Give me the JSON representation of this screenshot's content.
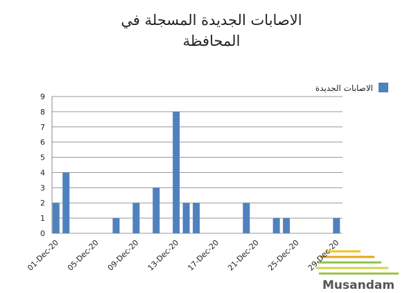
{
  "chart_data": {
    "type": "bar",
    "title": "الاصابات الجديدة المسجلة في المحافظة",
    "x": [
      "01-Dec-20",
      "02-Dec-20",
      "07-Dec-20",
      "09-Dec-20",
      "11-Dec-20",
      "13-Dec-20",
      "14-Dec-20",
      "15-Dec-20",
      "20-Dec-20",
      "23-Dec-20",
      "24-Dec-20",
      "29-Dec-20"
    ],
    "series": [
      {
        "name": "الاصابات الجديدة",
        "color": "#4f81bd",
        "values": [
          2,
          4,
          1,
          2,
          3,
          8,
          2,
          2,
          2,
          1,
          1,
          1
        ]
      }
    ],
    "xticks": [
      "01-Dec-20",
      "05-Dec-20",
      "09-Dec-20",
      "13-Dec-20",
      "17-Dec-20",
      "21-Dec-20",
      "25-Dec-20",
      "29-Dec-20"
    ],
    "ylim": [
      0,
      9
    ],
    "yticks": [
      0,
      1,
      2,
      3,
      4,
      5,
      6,
      7,
      8,
      9
    ],
    "grid": true,
    "legend": "right",
    "watermark": "Musandam"
  }
}
